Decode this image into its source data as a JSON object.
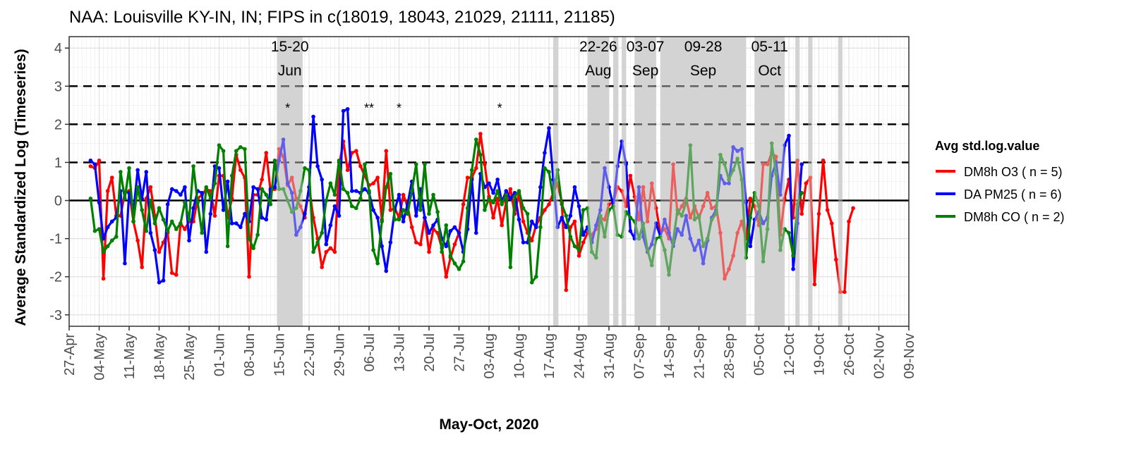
{
  "chart_data": {
    "type": "line",
    "title": "NAA: Louisville KY-IN, IN; FIPS in c(18019, 18043, 21029, 21111, 21185)",
    "xlabel": "May-Oct, 2020",
    "ylabel": "Average Standardized Log (Timeseries)",
    "ylim": [
      -3.3,
      4.3
    ],
    "yticks": [
      -3,
      -2,
      -1,
      0,
      1,
      2,
      3,
      4
    ],
    "x_range_days": [
      -6,
      190
    ],
    "x_origin": "2020-05-03",
    "xticks": [
      {
        "label": "27-Apr",
        "day": -6
      },
      {
        "label": "04-May",
        "day": 1
      },
      {
        "label": "11-May",
        "day": 8
      },
      {
        "label": "18-May",
        "day": 15
      },
      {
        "label": "25-May",
        "day": 22
      },
      {
        "label": "01-Jun",
        "day": 29
      },
      {
        "label": "08-Jun",
        "day": 36
      },
      {
        "label": "15-Jun",
        "day": 43
      },
      {
        "label": "22-Jun",
        "day": 50
      },
      {
        "label": "29-Jun",
        "day": 57
      },
      {
        "label": "06-Jul",
        "day": 64
      },
      {
        "label": "13-Jul",
        "day": 71
      },
      {
        "label": "20-Jul",
        "day": 78
      },
      {
        "label": "27-Jul",
        "day": 85
      },
      {
        "label": "03-Aug",
        "day": 92
      },
      {
        "label": "10-Aug",
        "day": 99
      },
      {
        "label": "17-Aug",
        "day": 106
      },
      {
        "label": "24-Aug",
        "day": 113
      },
      {
        "label": "31-Aug",
        "day": 120
      },
      {
        "label": "07-Sep",
        "day": 127
      },
      {
        "label": "14-Sep",
        "day": 134
      },
      {
        "label": "21-Sep",
        "day": 141
      },
      {
        "label": "28-Sep",
        "day": 148
      },
      {
        "label": "05-Oct",
        "day": 155
      },
      {
        "label": "12-Oct",
        "day": 162
      },
      {
        "label": "19-Oct",
        "day": 169
      },
      {
        "label": "26-Oct",
        "day": 176
      },
      {
        "label": "02-Nov",
        "day": 183
      },
      {
        "label": "09-Nov",
        "day": 190
      }
    ],
    "reference_lines": [
      {
        "y": 0,
        "style": "solid"
      },
      {
        "y": 1,
        "style": "dashed"
      },
      {
        "y": 2,
        "style": "dashed"
      },
      {
        "y": 3,
        "style": "dashed"
      }
    ],
    "shaded_periods": [
      {
        "start": 42.5,
        "end": 48.5
      },
      {
        "start": 107,
        "end": 108.2
      },
      {
        "start": 115,
        "end": 120
      },
      {
        "start": 121,
        "end": 122.2
      },
      {
        "start": 123,
        "end": 124
      },
      {
        "start": 126,
        "end": 131
      },
      {
        "start": 132,
        "end": 152
      },
      {
        "start": 154,
        "end": 161
      },
      {
        "start": 163.5,
        "end": 164.5
      },
      {
        "start": 166.5,
        "end": 167.5
      },
      {
        "start": 173.5,
        "end": 174.5
      }
    ],
    "event_labels": [
      {
        "day": 45.5,
        "line1": "15-20",
        "line2": "Jun"
      },
      {
        "day": 117.5,
        "line1": "22-26",
        "line2": "Aug"
      },
      {
        "day": 128.5,
        "line1": "03-07",
        "line2": "Sep"
      },
      {
        "day": 142,
        "line1": "09-28",
        "line2": "Sep"
      },
      {
        "day": 157.5,
        "line1": "05-11",
        "line2": "Oct"
      }
    ],
    "star_markers": [
      {
        "day": 45,
        "y": 2.5,
        "text": "*"
      },
      {
        "day": 64,
        "y": 2.5,
        "text": "**"
      },
      {
        "day": 71,
        "y": 2.5,
        "text": "*"
      },
      {
        "day": 94.5,
        "y": 2.5,
        "text": "*"
      }
    ],
    "legend": {
      "title": "Avg std.log.value",
      "placement": "right",
      "entries": [
        {
          "label": "DM8h O3 ( n = 5)",
          "color": "#ff0000"
        },
        {
          "label": "DA PM25 ( n = 6)",
          "color": "#0000ff"
        },
        {
          "label": "DM8h CO ( n = 2)",
          "color": "#008000"
        }
      ]
    },
    "series": [
      {
        "name": "DM8h O3 ( n = 5)",
        "color": "#ff0000",
        "start_day": -1,
        "values": [
          0.9,
          0.85,
          1.05,
          -2.05,
          0.25,
          0.6,
          -0.4,
          -0.4,
          0.2,
          0.25,
          -0.55,
          -1.05,
          -1.75,
          0.05,
          0.35,
          -0.4,
          -1.35,
          -1.1,
          -0.85,
          -1.9,
          -1.95,
          -0.6,
          -0.75,
          -0.55,
          -0.55,
          0.05,
          0.15,
          0.3,
          0.25,
          -0.4,
          0.65,
          0.65,
          -0.45,
          0.05,
          1.2,
          0.8,
          0.6,
          -2.0,
          0.15,
          0.15,
          0.55,
          1.25,
          0.25,
          0.3,
          1.35,
          1.15,
          0.4,
          0.6,
          0.05,
          -0.15,
          -0.45,
          0.35,
          -0.45,
          -1.0,
          -1.75,
          -1.35,
          -1.25,
          -1.35,
          0.9,
          1.55,
          0.8,
          1.25,
          1.3,
          0.9,
          0.65,
          0.4,
          0.45,
          0.6,
          -0.5,
          1.3,
          -0.25,
          -0.2,
          -0.45,
          0.15,
          -0.15,
          -0.7,
          -1.1,
          -1.15,
          -0.45,
          -1.35,
          -0.75,
          -0.85,
          -1.25,
          -2.0,
          -1.5,
          -1.15,
          -0.85,
          -0.1,
          0.6,
          0.6,
          0.85,
          1.75,
          0.95,
          0.1,
          -0.45,
          0.05,
          -0.65,
          -0.05,
          0.3,
          -0.35,
          0.2,
          -0.55,
          -0.85,
          -1.05,
          -0.65,
          -0.45,
          -0.25,
          -0.1,
          0.2,
          0.45,
          -0.05,
          -2.35,
          -0.7,
          -0.55,
          -1.45,
          -1.1,
          -0.85,
          -0.9,
          -0.75,
          -0.45,
          -0.5,
          -0.1,
          -0.05,
          0.35,
          0.25,
          -0.15,
          0.65,
          0.1,
          -0.5,
          0.35,
          -0.55,
          0.45,
          -0.2,
          -0.85,
          -0.75,
          -1.0,
          0.95,
          -0.35,
          -0.15,
          0.05,
          -0.45,
          -0.15,
          -0.45,
          -0.15,
          0.2,
          -0.2,
          -0.15,
          -0.85,
          -2.05,
          -1.8,
          -1.45,
          -0.85,
          -0.55,
          -1.0,
          0.05,
          -0.15,
          -0.65,
          0.95,
          0.95,
          1.25,
          1.15,
          -0.9,
          0.05,
          0.55,
          -0.45,
          1.05,
          -0.35,
          0.45,
          0.6,
          -2.2,
          -0.35,
          1.05,
          -0.25,
          -0.6,
          -1.55,
          -2.4,
          -2.4,
          -0.55,
          -0.2
        ]
      },
      {
        "name": "DA PM25 ( n = 6)",
        "color": "#0000ff",
        "start_day": -1,
        "values": [
          1.05,
          0.95,
          -0.05,
          -1.0,
          -0.7,
          -0.55,
          -0.45,
          0.25,
          -1.65,
          0.2,
          -0.3,
          0.8,
          0.05,
          0.75,
          -0.85,
          -1.3,
          -2.15,
          -2.1,
          -0.1,
          0.3,
          0.25,
          0.15,
          0.35,
          -1.05,
          -0.2,
          0.25,
          0.2,
          -1.35,
          -0.35,
          0.9,
          0.85,
          -0.25,
          0.5,
          -0.6,
          -0.6,
          -0.7,
          -0.35,
          -0.55,
          0.35,
          0.3,
          -0.45,
          -0.5,
          0.3,
          0.35,
          1.05,
          1.6,
          0.45,
          0.2,
          -0.9,
          -0.7,
          -0.35,
          0.35,
          2.2,
          0.9,
          0.55,
          -1.15,
          -0.65,
          -0.15,
          -0.4,
          2.35,
          2.4,
          0.25,
          0.25,
          0.2,
          0.3,
          0.2,
          -0.25,
          -0.45,
          -1.2,
          -1.85,
          -1.1,
          -0.25,
          0.15,
          -0.55,
          -0.1,
          0.5,
          -0.4,
          0.3,
          -0.45,
          -0.85,
          -0.65,
          -0.5,
          -1.0,
          -1.2,
          -0.8,
          -0.7,
          -0.85,
          -1.35,
          -0.75,
          0.55,
          -0.85,
          0.7,
          0.35,
          0.45,
          0.2,
          0.55,
          -0.05,
          0.25,
          0.05,
          0.2,
          -0.5,
          -1.1,
          -1.1,
          -0.55,
          -0.7,
          0.35,
          1.25,
          1.9,
          0.55,
          -0.7,
          -0.45,
          -0.7,
          -0.4,
          0.35,
          -0.15,
          -0.9,
          -0.7,
          -1.1,
          -0.65,
          -0.25,
          0.85,
          0.35,
          -0.15,
          0.9,
          1.55,
          0.95,
          -0.8,
          -1.0,
          0.35,
          -0.95,
          -1.35,
          -1.15,
          -0.6,
          -0.95,
          -0.5,
          -0.85,
          -1.2,
          -0.75,
          -0.9,
          -0.4,
          -1.0,
          -1.3,
          -1.05,
          -1.65,
          -1.05,
          -0.45,
          -0.25,
          0.65,
          0.45,
          0.45,
          1.4,
          1.3,
          1.35,
          -0.05,
          -1.2,
          -0.5,
          -0.3,
          -0.6,
          -0.45,
          0.65,
          1.0,
          0.15,
          1.45,
          1.7,
          -1.8,
          -0.6,
          0.95
        ]
      },
      {
        "name": "DM8h CO ( n = 2)",
        "color": "#008000",
        "start_day": -1,
        "values": [
          0.05,
          -0.8,
          -0.75,
          -1.35,
          -1.2,
          -1.05,
          -0.95,
          0.75,
          0.05,
          0.85,
          -0.55,
          0.35,
          -0.25,
          -0.8,
          0.0,
          -0.6,
          -0.2,
          -0.5,
          -0.8,
          -0.55,
          -0.75,
          -0.6,
          -0.05,
          -0.5,
          0.9,
          -0.05,
          -0.85,
          0.35,
          0.05,
          0.45,
          1.45,
          1.3,
          -1.2,
          0.65,
          1.3,
          1.4,
          1.35,
          -1.0,
          -1.25,
          -0.9,
          0.3,
          0.15,
          -0.1,
          1.05,
          0.3,
          0.3,
          0.0,
          -0.3,
          -0.2,
          0.25,
          0.85,
          0.8,
          -1.35,
          -1.1,
          -0.85,
          0.0,
          0.45,
          0.15,
          1.05,
          0.3,
          0.2,
          -0.15,
          -0.2,
          0.05,
          0.95,
          0.25,
          -1.3,
          -1.65,
          -0.55,
          0.35,
          0.7,
          -0.5,
          -0.5,
          -0.25,
          -0.35,
          0.25,
          0.95,
          -0.25,
          0.95,
          -0.35,
          0.15,
          -0.3,
          -1.35,
          -0.65,
          -1.45,
          -1.65,
          -1.8,
          -1.6,
          -0.2,
          0.8,
          1.6,
          1.2,
          -0.25,
          0.05,
          -0.05,
          0.25,
          -0.1,
          0.15,
          -1.75,
          0.1,
          0.25,
          -0.2,
          -0.35,
          -2.15,
          -2.0,
          -0.7,
          0.85,
          0.75,
          0.05,
          0.8,
          -0.1,
          -0.4,
          -0.95,
          -1.2,
          -1.3,
          -0.25,
          -0.2,
          -1.35,
          -1.5,
          -0.4,
          -0.95,
          -0.25,
          -0.15,
          -0.9,
          -0.95,
          -0.3,
          -0.45,
          -0.55,
          -1.0,
          -0.6,
          -1.3,
          -1.7,
          -1.0,
          -0.95,
          -1.3,
          -1.95,
          -1.05,
          -0.25,
          -0.4,
          -0.05,
          1.45,
          -0.5,
          -0.4,
          -1.2,
          -1.0,
          -0.5,
          -0.35,
          1.2,
          0.95,
          0.55,
          0.8,
          1.1,
          0.55,
          -1.5,
          -0.45,
          0.2,
          -0.15,
          -1.6,
          -0.75,
          1.5,
          0.7,
          -1.3,
          -0.75,
          -0.85,
          -1.45,
          -0.1,
          0.2
        ]
      }
    ]
  }
}
